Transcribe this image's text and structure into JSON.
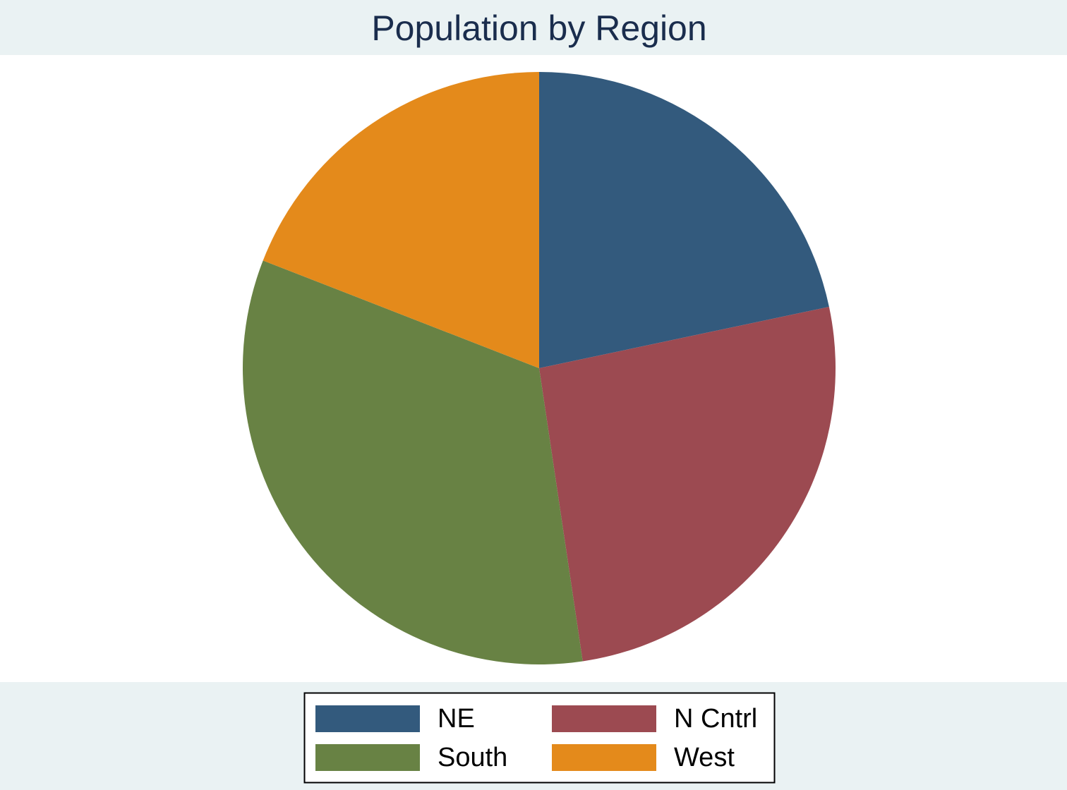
{
  "chart_data": {
    "type": "pie",
    "title": "Population by Region",
    "categories": [
      "NE",
      "N Cntrl",
      "South",
      "West"
    ],
    "values": [
      21.7,
      26.0,
      33.3,
      19.1
    ],
    "colors": [
      "#335a7d",
      "#9c4a51",
      "#688244",
      "#e48a1b"
    ],
    "legend": "bottom",
    "legend_columns": 2
  }
}
